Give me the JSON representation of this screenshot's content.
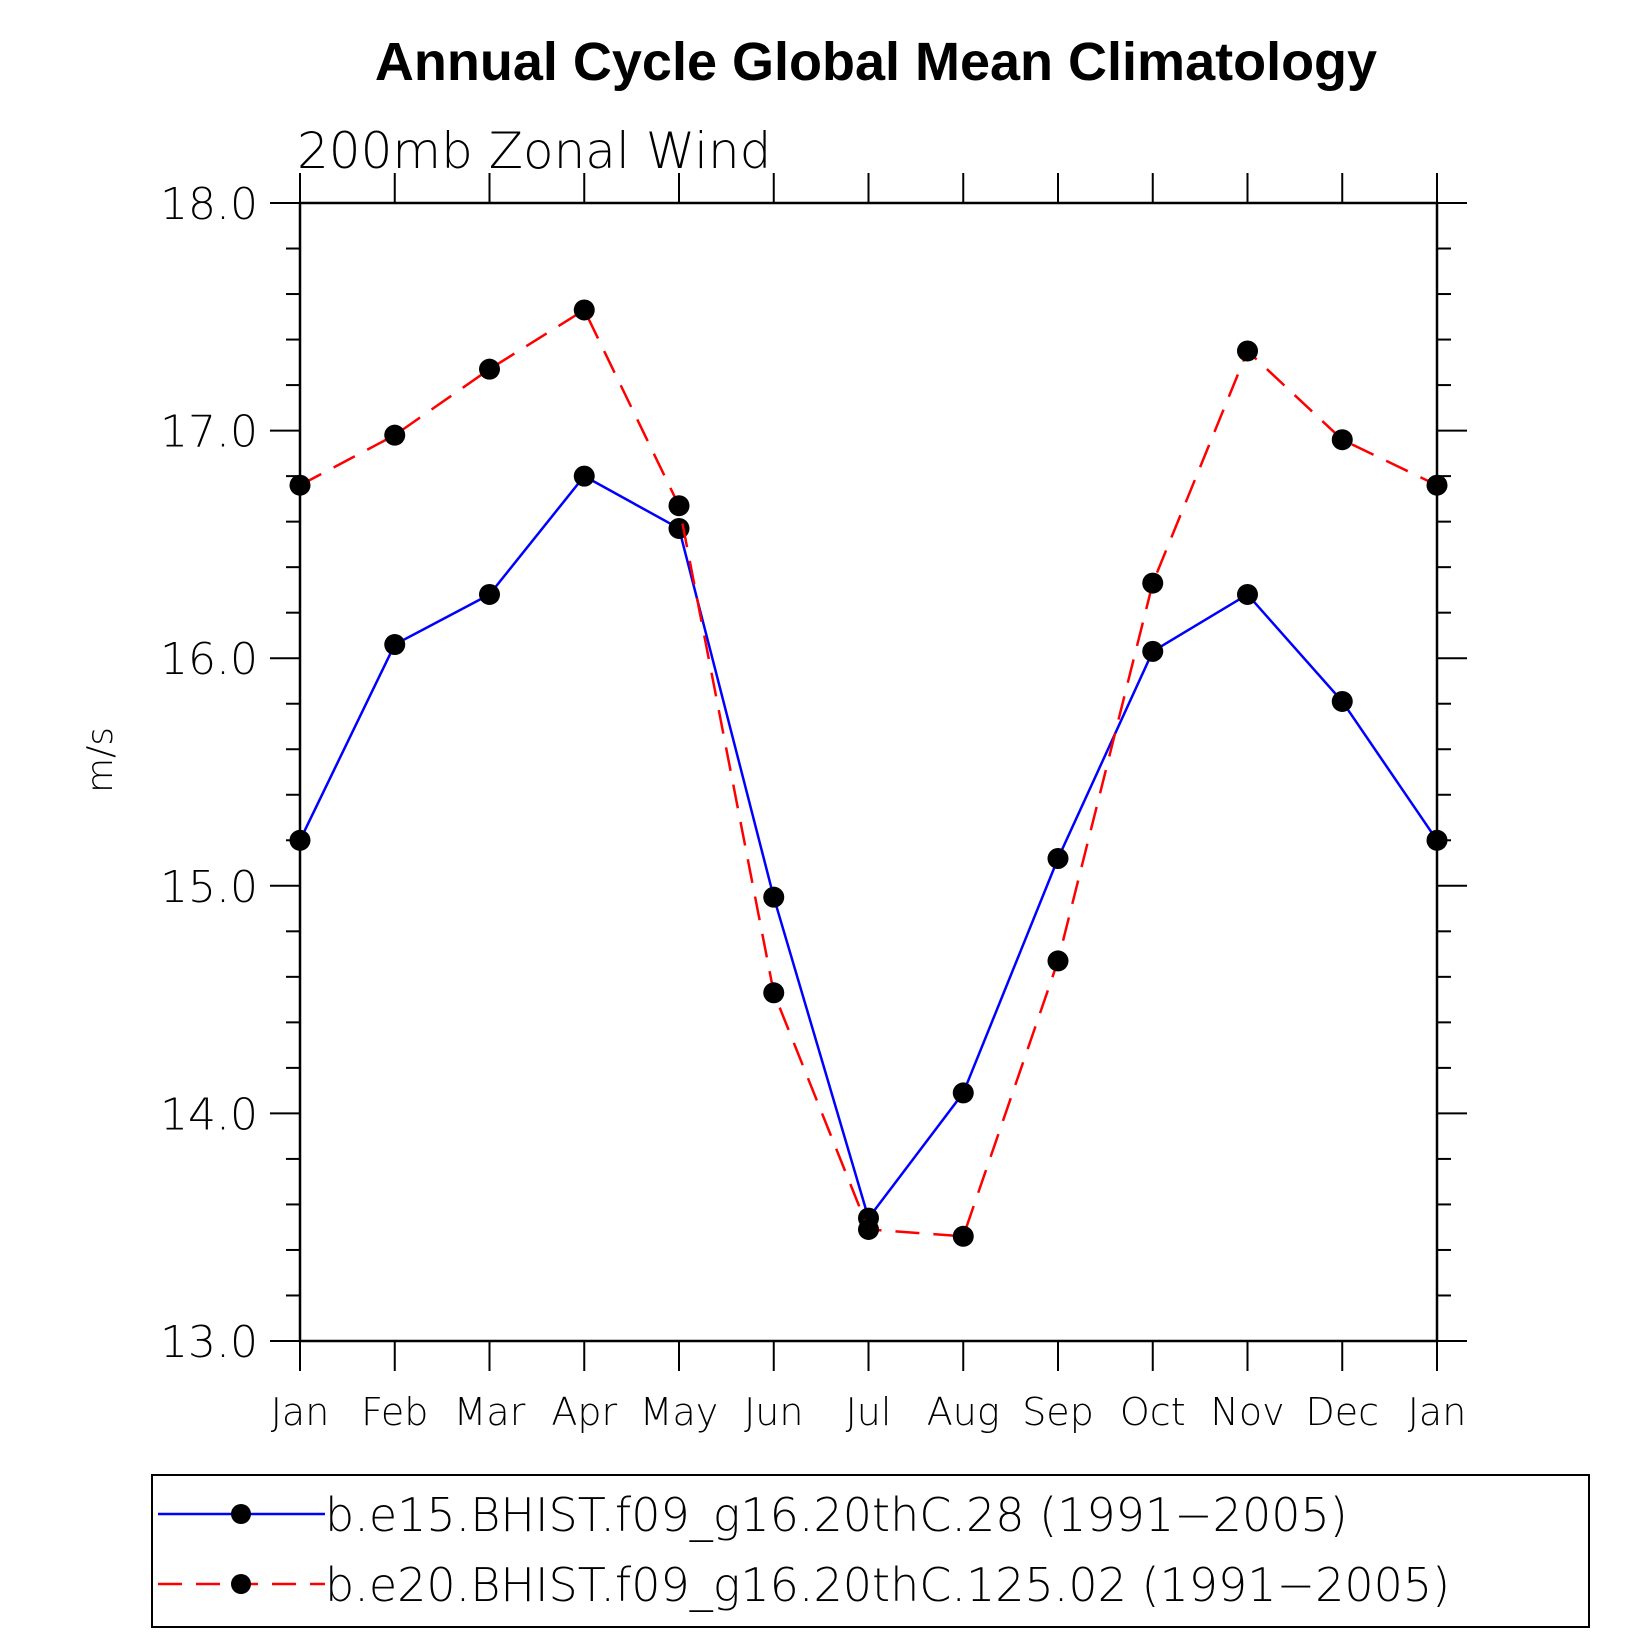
{
  "chart_data": {
    "type": "line",
    "title": "Annual Cycle Global Mean Climatology",
    "subtitle": "200mb  Zonal  Wind",
    "xlabel": "",
    "ylabel": "m/s",
    "categories": [
      "Jan",
      "Feb",
      "Mar",
      "Apr",
      "May",
      "Jun",
      "Jul",
      "Aug",
      "Sep",
      "Oct",
      "Nov",
      "Dec",
      "Jan"
    ],
    "ylim": [
      13.0,
      18.0
    ],
    "yticks": [
      "13.0",
      "14.0",
      "15.0",
      "16.0",
      "17.0",
      "18.0"
    ],
    "grid": false,
    "legend_position": "bottom",
    "series": [
      {
        "name": "b.e15.BHIST.f09_g16.20thC.28 (1991−2005)",
        "color": "#0000ff",
        "style": "solid",
        "marker": "filled-circle",
        "values": [
          15.2,
          16.06,
          16.28,
          16.8,
          16.57,
          14.95,
          13.54,
          14.09,
          15.12,
          16.03,
          16.28,
          15.81,
          15.2
        ]
      },
      {
        "name": "b.e20.BHIST.f09_g16.20thC.125.02 (1991−2005)",
        "color": "#ff0000",
        "style": "dashed",
        "marker": "filled-circle",
        "values": [
          16.76,
          16.98,
          17.27,
          17.53,
          16.67,
          14.53,
          13.49,
          13.46,
          14.67,
          16.33,
          17.35,
          16.96,
          16.76
        ]
      }
    ]
  }
}
